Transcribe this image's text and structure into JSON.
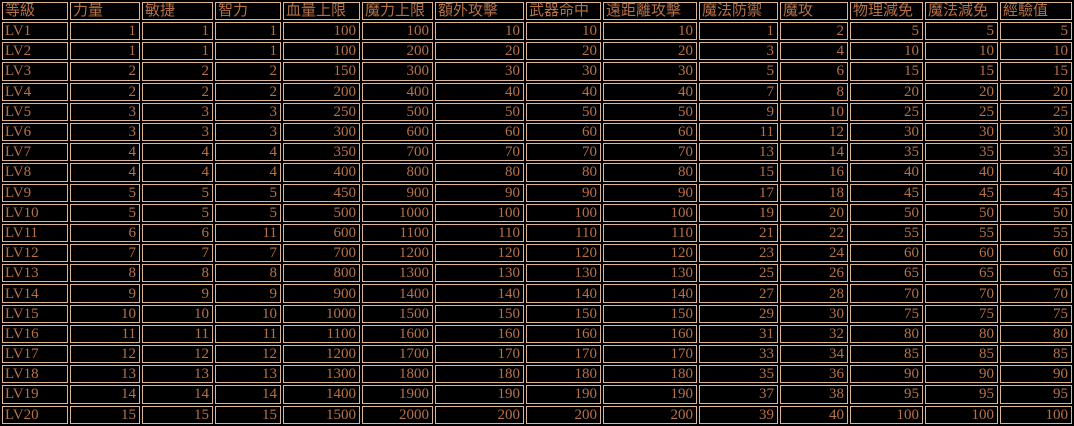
{
  "colors": {
    "background": "#000000",
    "text": "#b5714a",
    "grid": "#dcb492"
  },
  "chart_data": {
    "type": "table",
    "columns": [
      "等級",
      "力量",
      "敏捷",
      "智力",
      "血量上限",
      "魔力上限",
      "額外攻擊",
      "武器命中",
      "遠距離攻擊",
      "魔法防禦",
      "魔攻",
      "物理減免",
      "魔法減免",
      "經驗值"
    ],
    "rows": [
      [
        "LV1",
        1,
        1,
        1,
        100,
        100,
        10,
        10,
        10,
        1,
        2,
        5,
        5,
        5
      ],
      [
        "LV2",
        1,
        1,
        1,
        100,
        200,
        20,
        20,
        20,
        3,
        4,
        10,
        10,
        10
      ],
      [
        "LV3",
        2,
        2,
        2,
        150,
        300,
        30,
        30,
        30,
        5,
        6,
        15,
        15,
        15
      ],
      [
        "LV4",
        2,
        2,
        2,
        200,
        400,
        40,
        40,
        40,
        7,
        8,
        20,
        20,
        20
      ],
      [
        "LV5",
        3,
        3,
        3,
        250,
        500,
        50,
        50,
        50,
        9,
        10,
        25,
        25,
        25
      ],
      [
        "LV6",
        3,
        3,
        3,
        300,
        600,
        60,
        60,
        60,
        11,
        12,
        30,
        30,
        30
      ],
      [
        "LV7",
        4,
        4,
        4,
        350,
        700,
        70,
        70,
        70,
        13,
        14,
        35,
        35,
        35
      ],
      [
        "LV8",
        4,
        4,
        4,
        400,
        800,
        80,
        80,
        80,
        15,
        16,
        40,
        40,
        40
      ],
      [
        "LV9",
        5,
        5,
        5,
        450,
        900,
        90,
        90,
        90,
        17,
        18,
        45,
        45,
        45
      ],
      [
        "LV10",
        5,
        5,
        5,
        500,
        1000,
        100,
        100,
        100,
        19,
        20,
        50,
        50,
        50
      ],
      [
        "LV11",
        6,
        6,
        11,
        600,
        1100,
        110,
        110,
        110,
        21,
        22,
        55,
        55,
        55
      ],
      [
        "LV12",
        7,
        7,
        7,
        700,
        1200,
        120,
        120,
        120,
        23,
        24,
        60,
        60,
        60
      ],
      [
        "LV13",
        8,
        8,
        8,
        800,
        1300,
        130,
        130,
        130,
        25,
        26,
        65,
        65,
        65
      ],
      [
        "LV14",
        9,
        9,
        9,
        900,
        1400,
        140,
        140,
        140,
        27,
        28,
        70,
        70,
        70
      ],
      [
        "LV15",
        10,
        10,
        10,
        1000,
        1500,
        150,
        150,
        150,
        29,
        30,
        75,
        75,
        75
      ],
      [
        "LV16",
        11,
        11,
        11,
        1100,
        1600,
        160,
        160,
        160,
        31,
        32,
        80,
        80,
        80
      ],
      [
        "LV17",
        12,
        12,
        12,
        1200,
        1700,
        170,
        170,
        170,
        33,
        34,
        85,
        85,
        85
      ],
      [
        "LV18",
        13,
        13,
        13,
        1300,
        1800,
        180,
        180,
        180,
        35,
        36,
        90,
        90,
        90
      ],
      [
        "LV19",
        14,
        14,
        14,
        1400,
        1900,
        190,
        190,
        190,
        37,
        38,
        95,
        95,
        95
      ],
      [
        "LV20",
        15,
        15,
        15,
        1500,
        2000,
        200,
        200,
        200,
        39,
        40,
        100,
        100,
        100
      ]
    ]
  }
}
